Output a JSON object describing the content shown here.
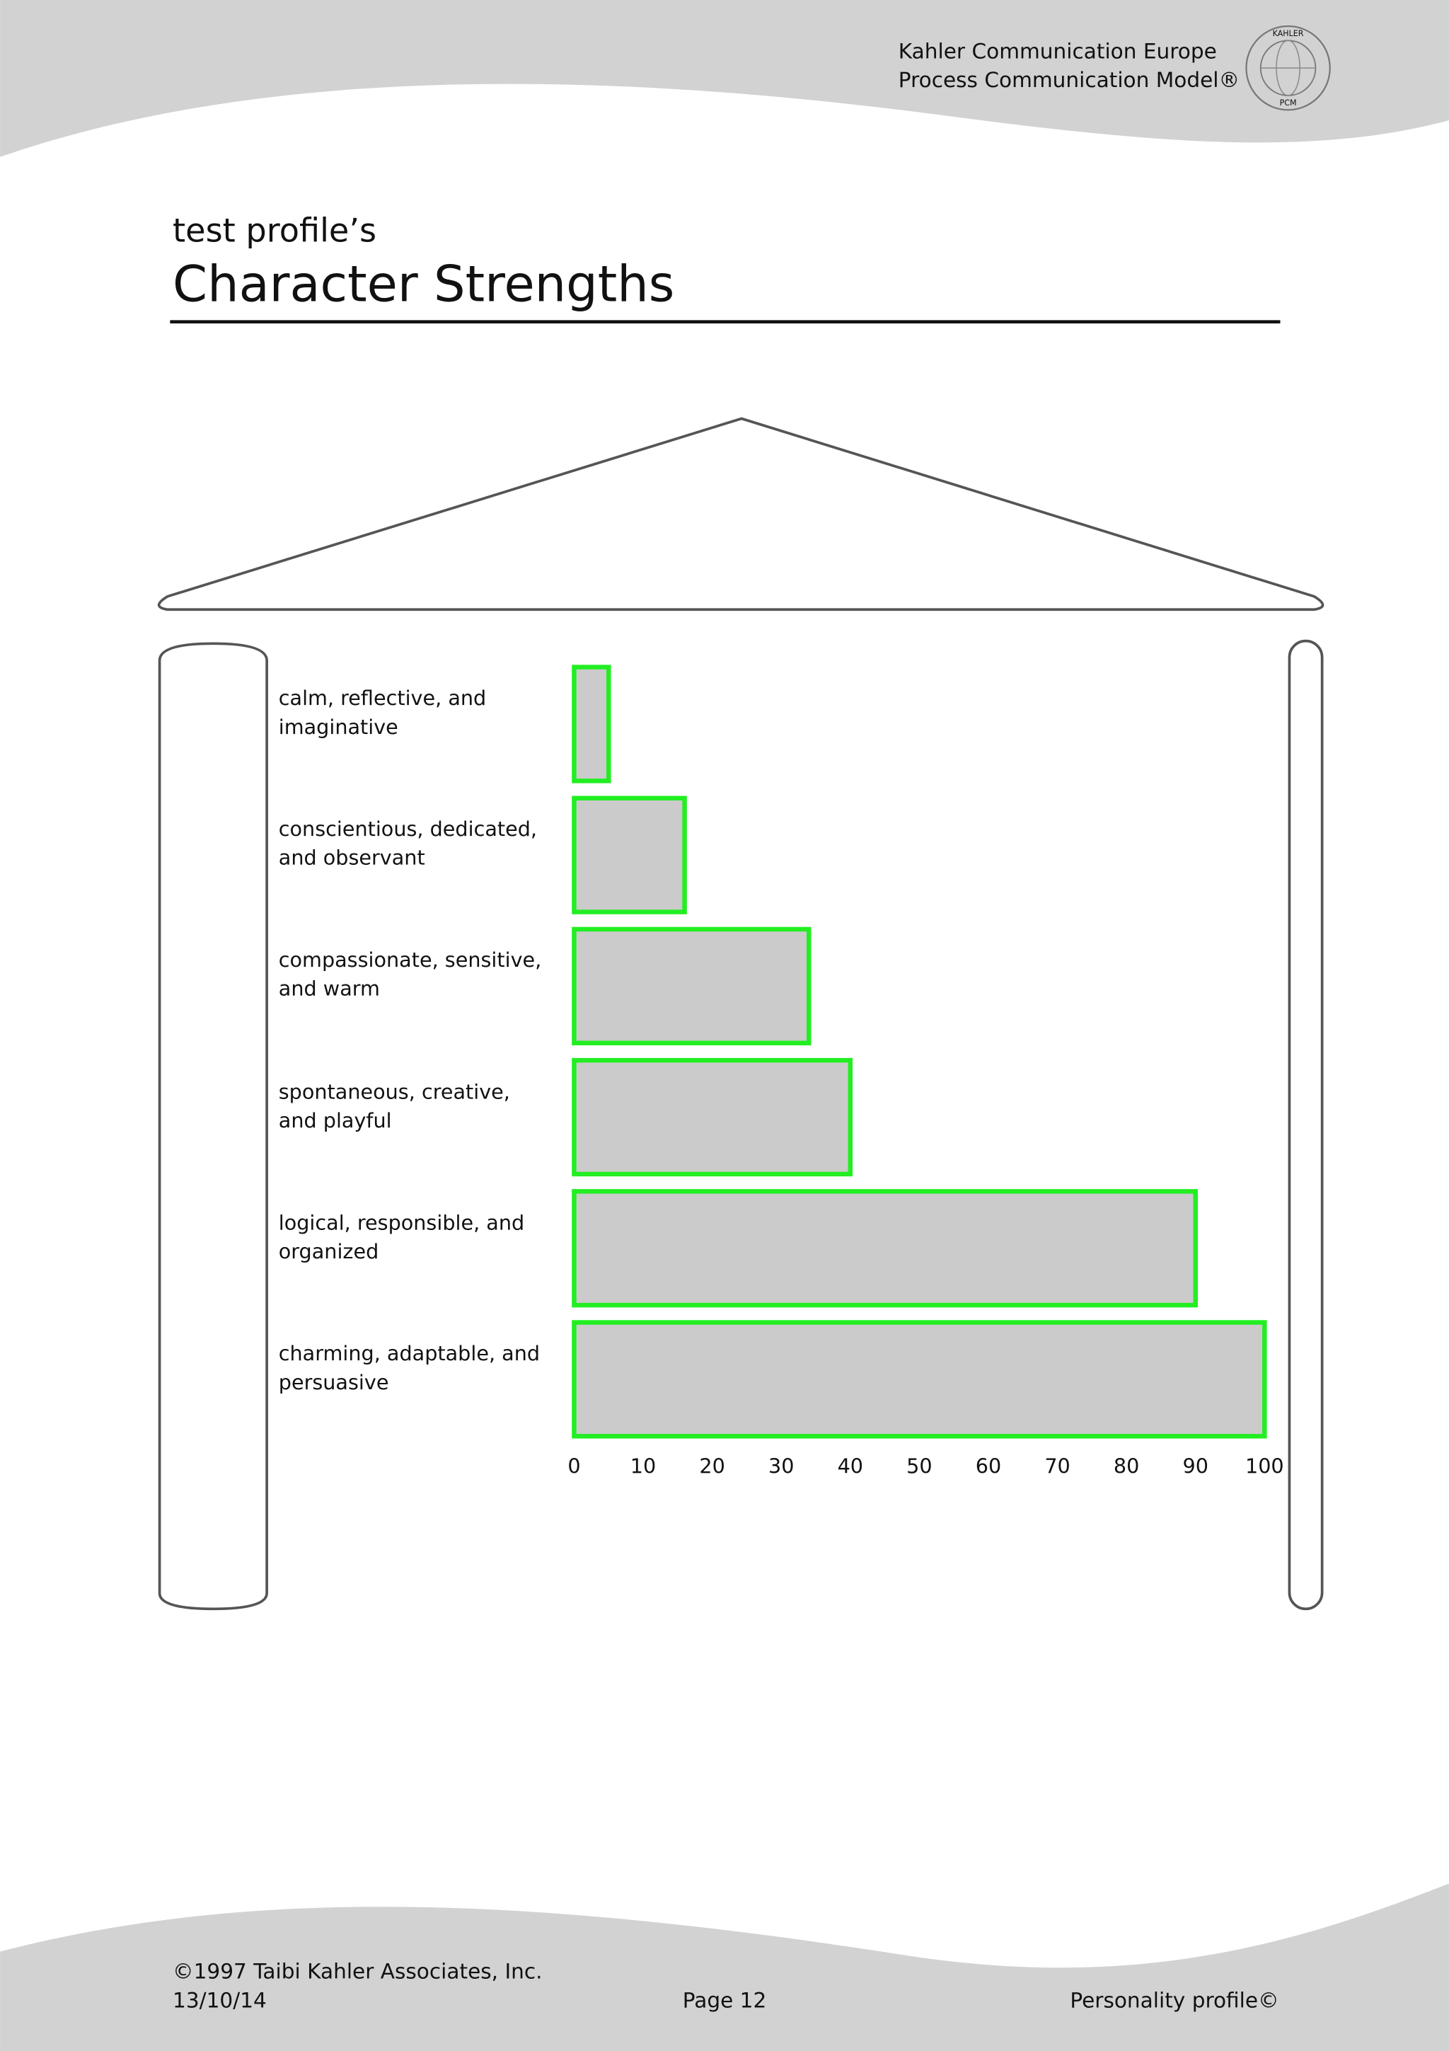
{
  "header": {
    "company": "Kahler Communication Europe",
    "model": "Process Communication Model®",
    "logo_top": "KAHLER",
    "logo_bottom": "PCM"
  },
  "heading": {
    "subtitle": "test profile’s",
    "title": "Character Strengths"
  },
  "chart_data": {
    "type": "bar",
    "orientation": "horizontal",
    "categories": [
      "calm, reflective, and imaginative",
      "conscientious, dedicated, and observant",
      "compassionate, sensitive, and warm",
      "spontaneous, creative, and playful",
      "logical, responsible, and organized",
      "charming, adaptable, and persuasive"
    ],
    "values": [
      5,
      16,
      34,
      40,
      90,
      100
    ],
    "color": "#cbcbcb",
    "edge_color": "#22ee22",
    "xlim": [
      0,
      100
    ],
    "xticks": [
      0,
      10,
      20,
      30,
      40,
      50,
      60,
      70,
      80,
      90,
      100
    ],
    "grid": false
  },
  "footer": {
    "copyright": "©1997 Taibi Kahler Associates, Inc.",
    "date": "13/10/14",
    "page": "Page 12",
    "product": "Personality profile©"
  }
}
